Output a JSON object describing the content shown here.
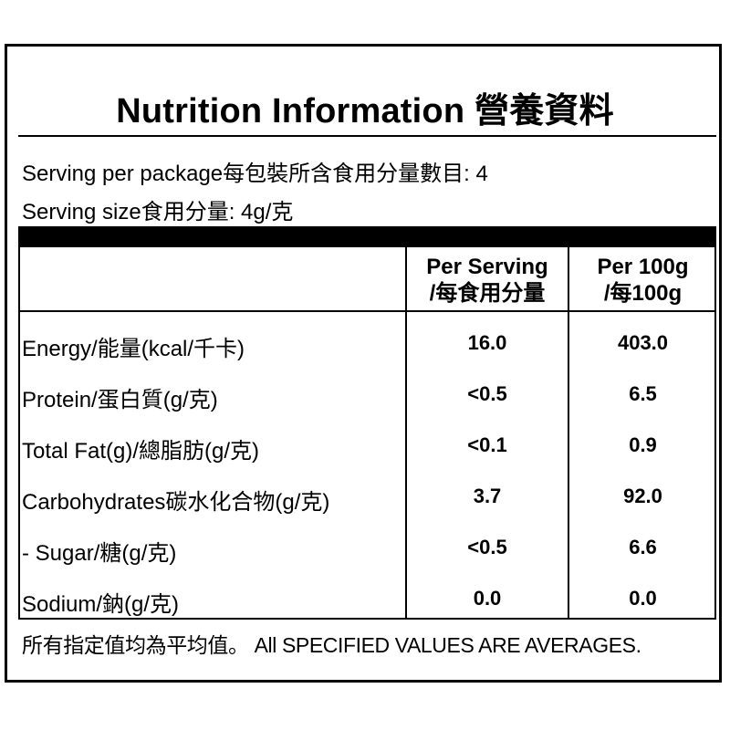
{
  "title": "Nutrition Information 營養資料",
  "serving_per_package": "Serving per package每包裝所含食用分量數目: 4",
  "serving_size": "Serving size食用分量: 4g/克",
  "table": {
    "headers": {
      "per_serving": [
        "Per Serving",
        "/每食用分量"
      ],
      "per_100g": [
        "Per 100g",
        "/每100g"
      ]
    },
    "rows": [
      {
        "name": "Energy/能量(kcal/千卡)",
        "per_serving": "16.0",
        "per_100g": "403.0"
      },
      {
        "name": "Protein/蛋白質(g/克)",
        "per_serving": "<0.5",
        "per_100g": "6.5"
      },
      {
        "name": "Total Fat(g)/總脂肪(g/克)",
        "per_serving": "<0.1",
        "per_100g": "0.9"
      },
      {
        "name": "Carbohydrates碳水化合物(g/克)",
        "per_serving": "3.7",
        "per_100g": "92.0"
      },
      {
        "name": "- Sugar/糖(g/克)",
        "per_serving": "<0.5",
        "per_100g": "6.6"
      },
      {
        "name": "Sodium/鈉(g/克)",
        "per_serving": "0.0",
        "per_100g": "0.0"
      }
    ]
  },
  "footnote": "所有指定值均為平均值。 All SPECIFIED VALUES ARE AVERAGES."
}
